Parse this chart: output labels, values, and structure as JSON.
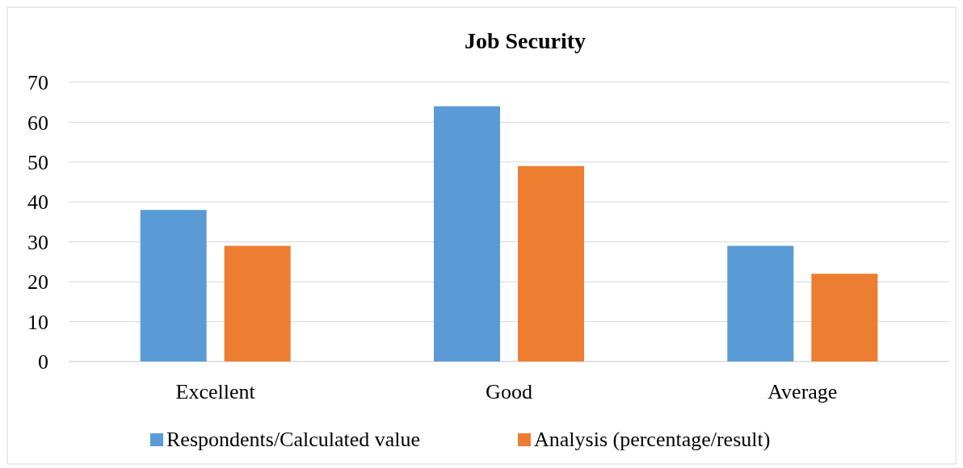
{
  "chart_data": {
    "type": "bar",
    "title": "Job Security",
    "categories": [
      "Excellent",
      "Good",
      "Average"
    ],
    "series": [
      {
        "name": "Respondents/Calculated value",
        "color": "#5b9bd5",
        "values": [
          38,
          64,
          29
        ]
      },
      {
        "name": "Analysis (percentage/result)",
        "color": "#ed7d31",
        "values": [
          29,
          49,
          22
        ]
      }
    ],
    "ylim": [
      0,
      70
    ],
    "yticks": [
      0,
      10,
      20,
      30,
      40,
      50,
      60,
      70
    ],
    "grid": "y",
    "legend": "bottom"
  }
}
